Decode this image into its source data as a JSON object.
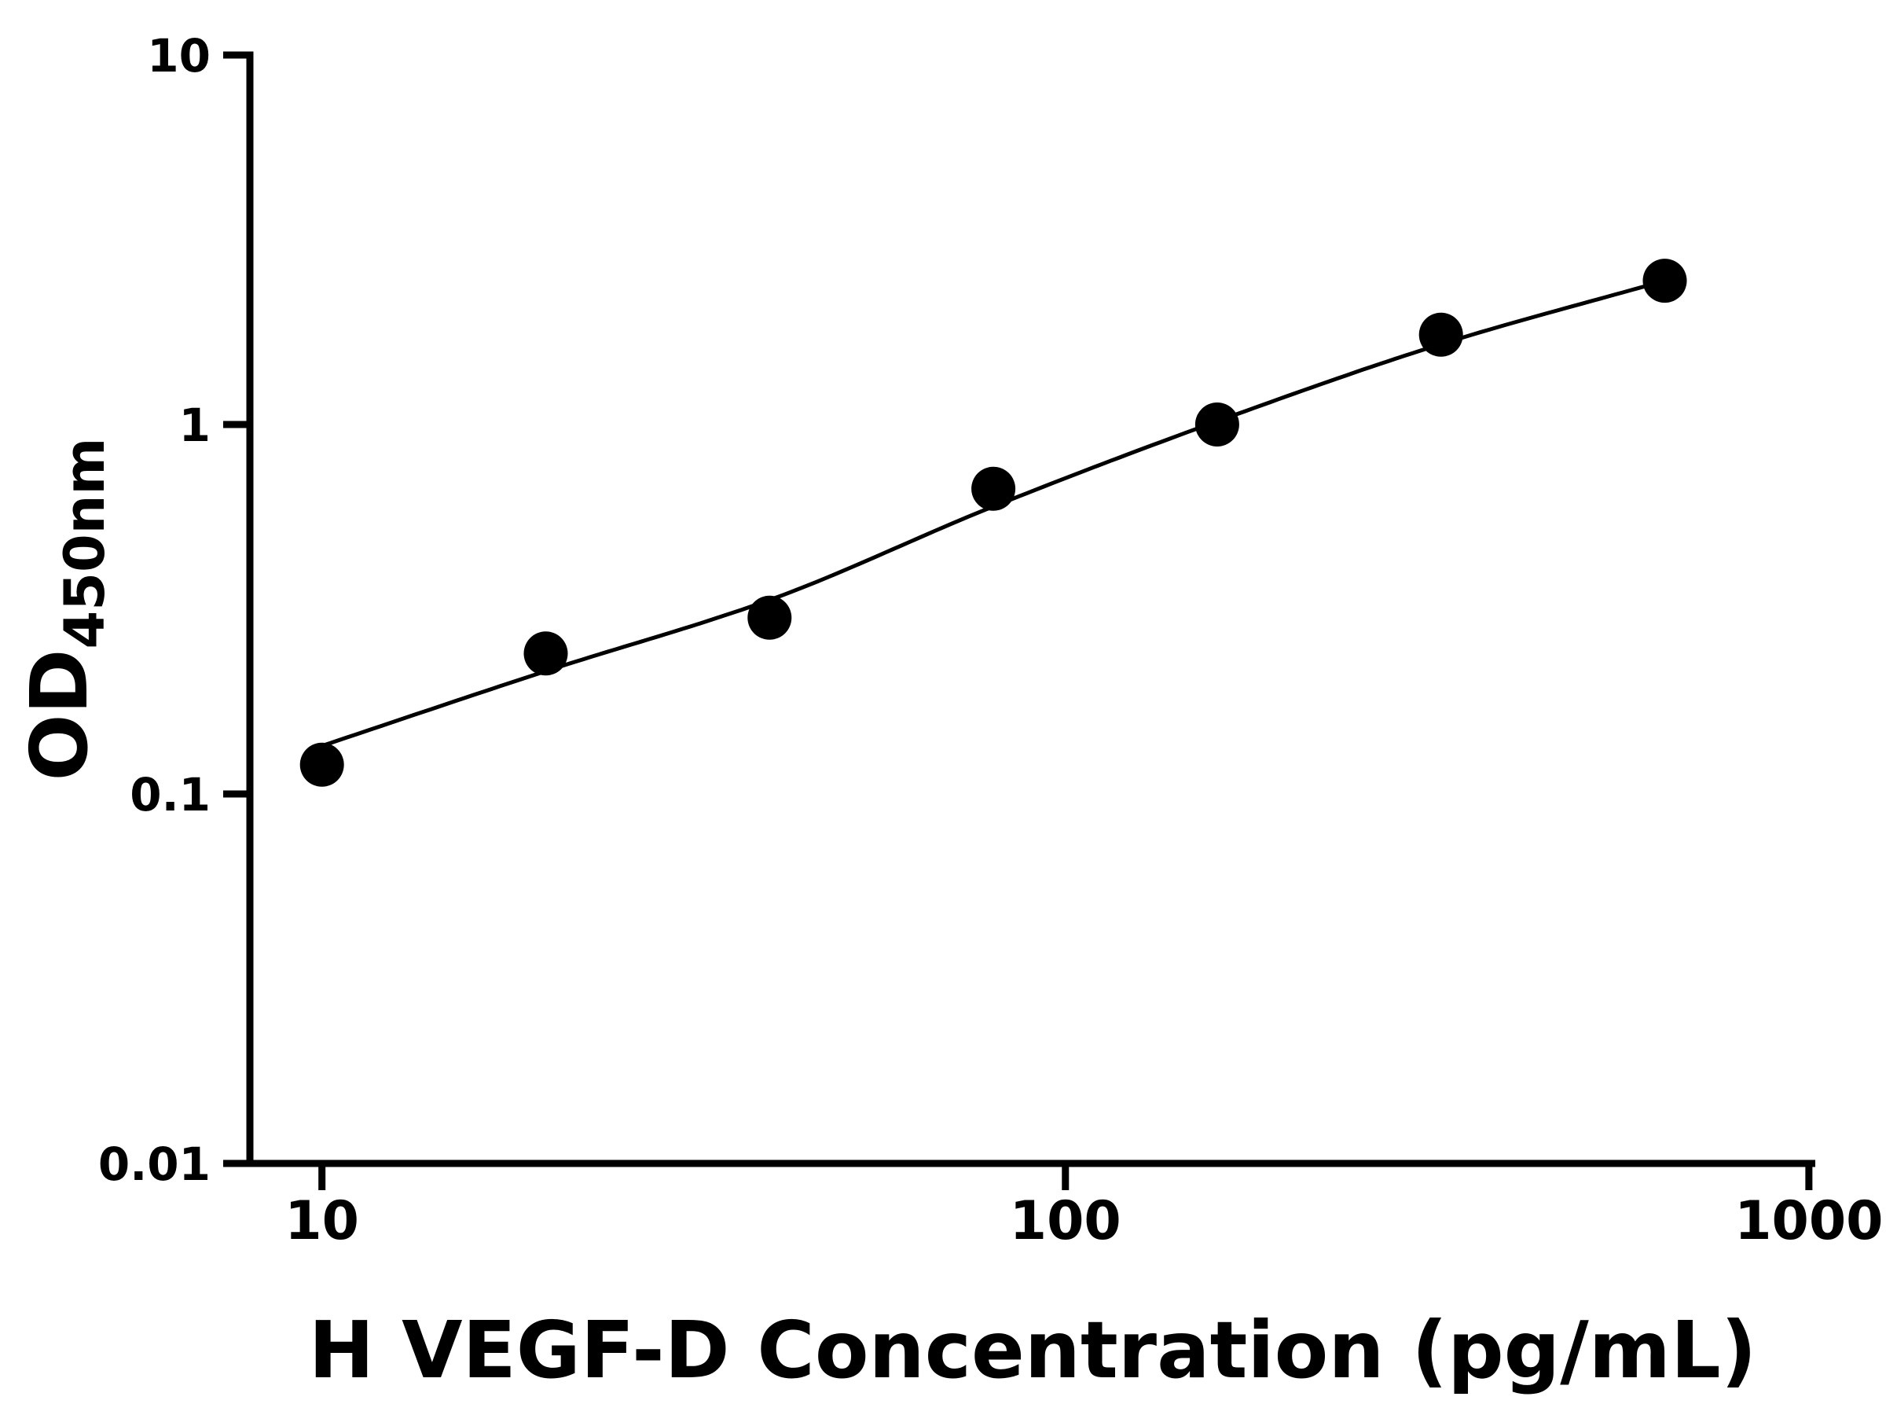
{
  "chart_data": {
    "type": "scatter",
    "title": "",
    "xlabel": "H VEGF-D Concentration (pg/mL)",
    "ylabel": "OD450nm",
    "ylabel_main": "OD",
    "ylabel_sub": "450nm",
    "xscale": "log",
    "yscale": "log",
    "xlim": [
      8,
      1020
    ],
    "ylim": [
      0.01,
      10
    ],
    "grid": false,
    "legend": false,
    "xticks": [
      {
        "value": 10,
        "label": "10"
      },
      {
        "value": 100,
        "label": "100"
      },
      {
        "value": 1000,
        "label": "1000"
      }
    ],
    "yticks": [
      {
        "value": 10,
        "label": "10"
      },
      {
        "value": 1,
        "label": "1"
      },
      {
        "value": 0.1,
        "label": "0.1"
      },
      {
        "value": 0.01,
        "label": "0.01"
      }
    ],
    "points": [
      {
        "x": 10,
        "y": 0.12
      },
      {
        "x": 20,
        "y": 0.24
      },
      {
        "x": 40,
        "y": 0.3
      },
      {
        "x": 80,
        "y": 0.67
      },
      {
        "x": 160,
        "y": 1.0
      },
      {
        "x": 320,
        "y": 1.75
      },
      {
        "x": 640,
        "y": 2.45
      }
    ],
    "fit_curve": [
      {
        "x": 10,
        "y": 0.135
      },
      {
        "x": 20,
        "y": 0.215
      },
      {
        "x": 40,
        "y": 0.335
      },
      {
        "x": 80,
        "y": 0.6
      },
      {
        "x": 160,
        "y": 1.02
      },
      {
        "x": 320,
        "y": 1.65
      },
      {
        "x": 640,
        "y": 2.45
      }
    ],
    "colors": {
      "axis": "#000000",
      "marker": "#000000",
      "curve": "#000000",
      "background": "#ffffff"
    }
  }
}
